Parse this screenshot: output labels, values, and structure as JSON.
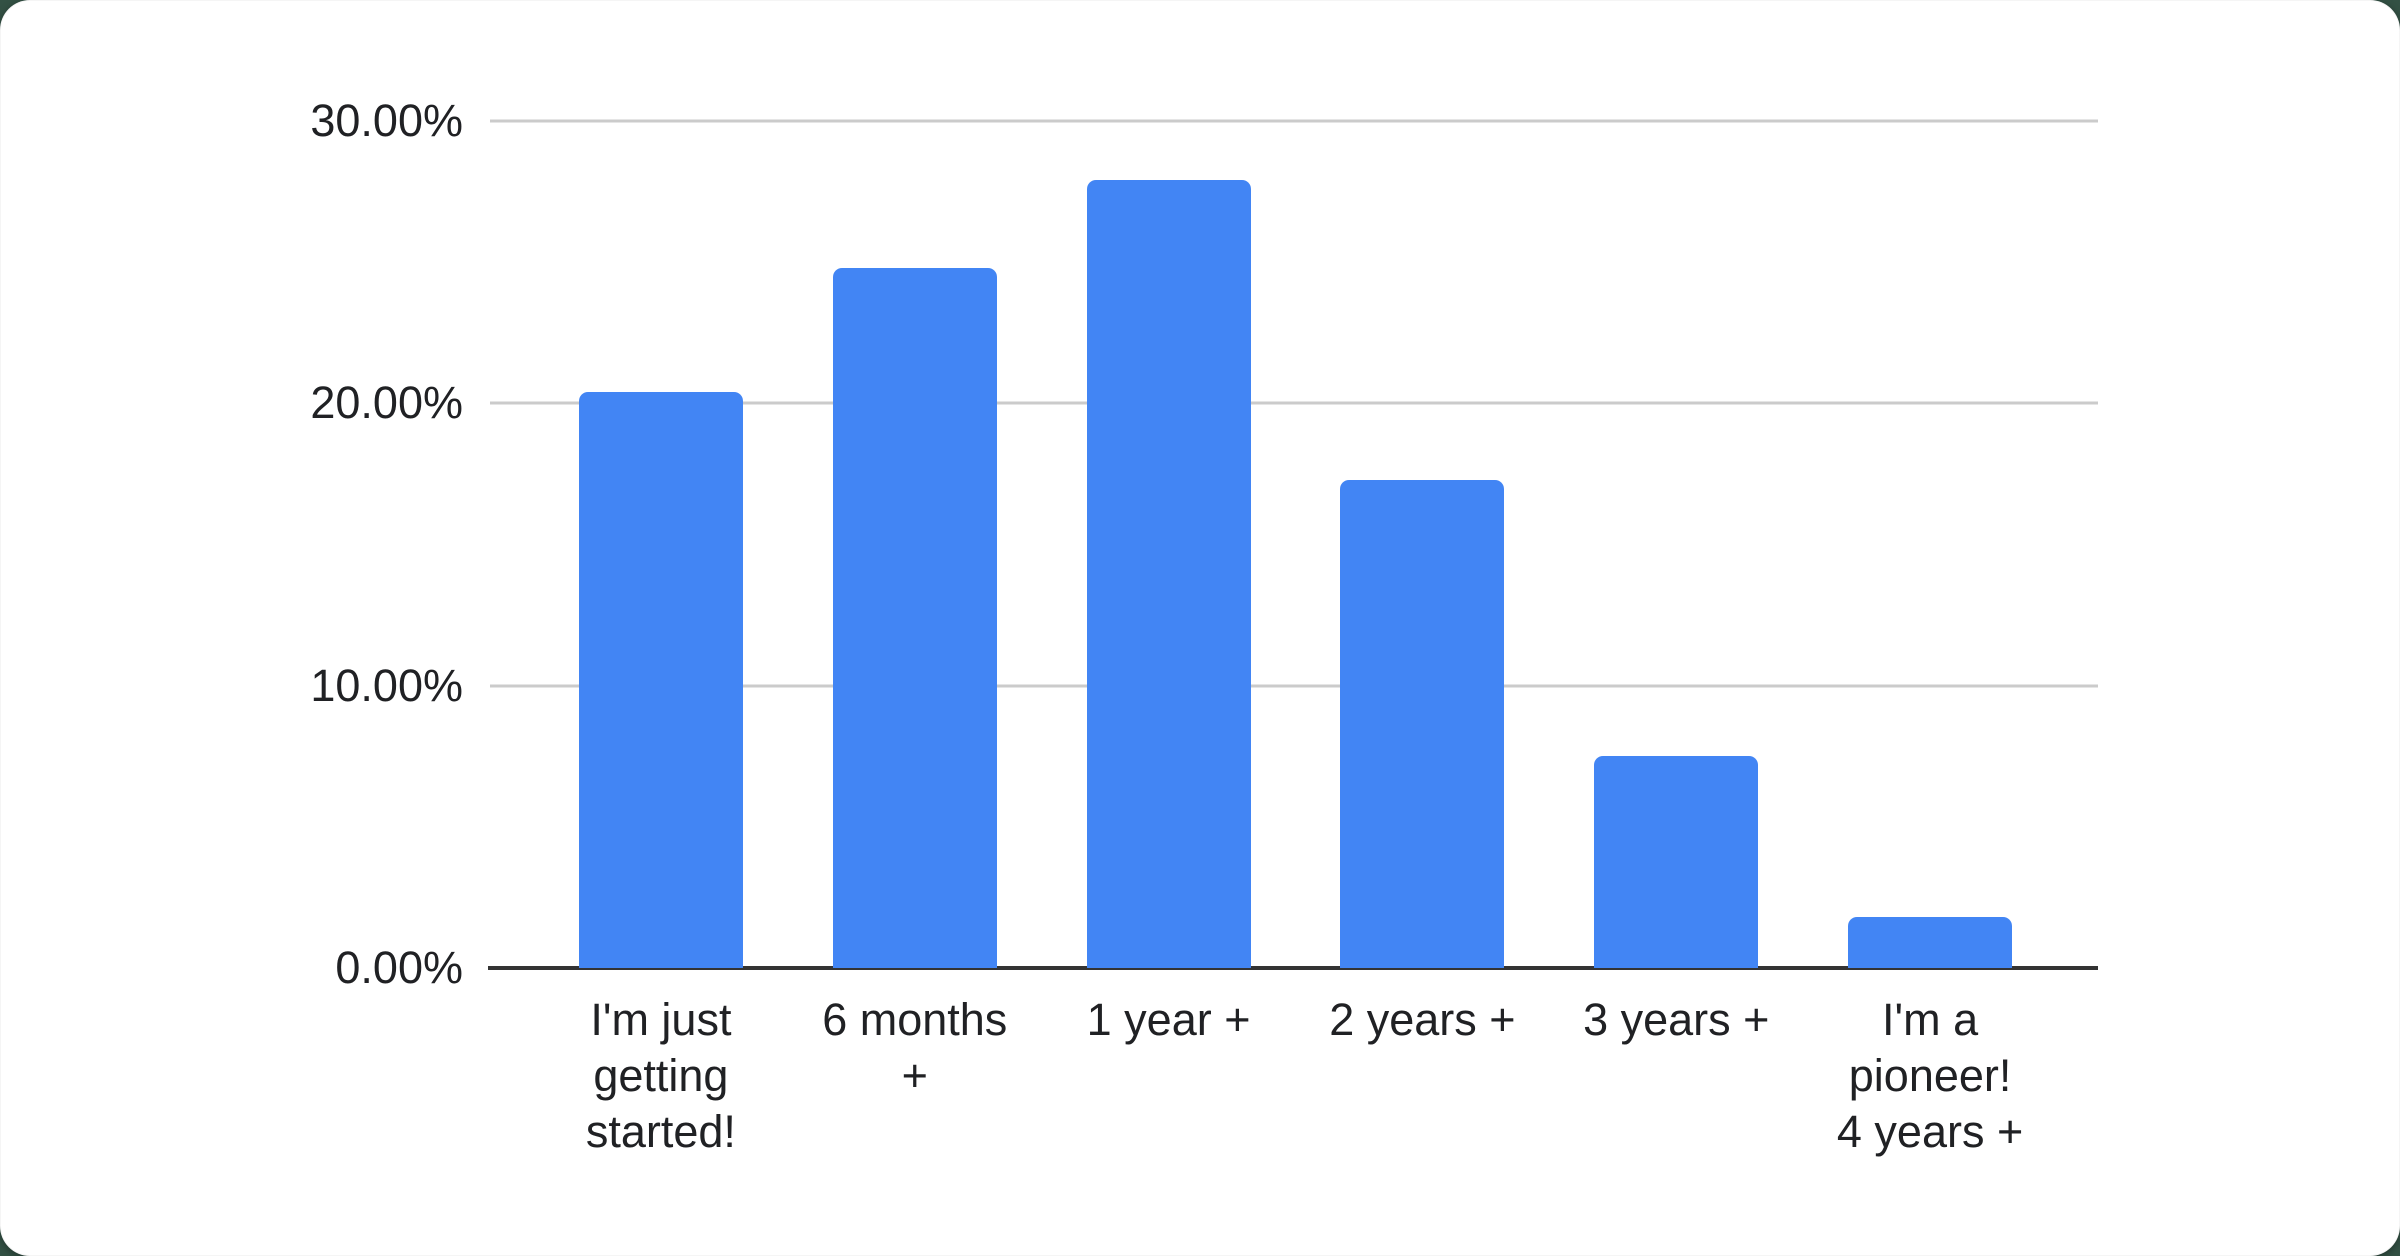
{
  "page": {
    "background_color": "#335144",
    "card_color": "#ffffff"
  },
  "chart_data": {
    "type": "bar",
    "title": "",
    "xlabel": "",
    "ylabel": "",
    "categories": [
      "I'm just getting started!",
      "6 months +",
      "1 year +",
      "2 years +",
      "3 years +",
      "I'm a pioneer! 4 years +"
    ],
    "category_label_lines": [
      [
        "I'm just",
        "getting",
        "started!"
      ],
      [
        "6 months",
        "+"
      ],
      [
        "1 year +"
      ],
      [
        "2 years +"
      ],
      [
        "3 years +"
      ],
      [
        "I'm a",
        "pioneer!",
        "4 years +"
      ]
    ],
    "values": [
      20.4,
      24.8,
      27.9,
      17.3,
      7.5,
      1.8
    ],
    "unit": "%",
    "ylim": [
      0,
      30
    ],
    "yticks": [
      {
        "value": 30,
        "label": "30.00%"
      },
      {
        "value": 20,
        "label": "20.00%"
      },
      {
        "value": 10,
        "label": "10.00%"
      },
      {
        "value": 0,
        "label": "0.00%"
      }
    ],
    "grid": true,
    "legend_position": "none",
    "bar_color": "#4285f4",
    "gridline_color": "#cbcbcb",
    "axis_line_color": "#333333",
    "text_color": "#202124"
  }
}
